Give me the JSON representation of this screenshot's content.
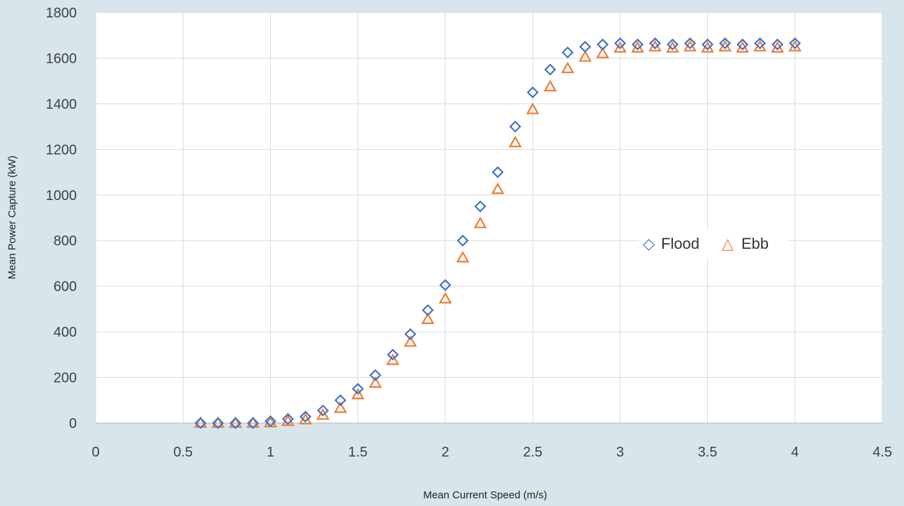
{
  "chart_data": {
    "type": "scatter",
    "title": "",
    "xlabel": "Mean Current Speed (m/s)",
    "ylabel": "Mean Power Capture (kW)",
    "xlim": [
      0,
      4.5
    ],
    "ylim": [
      0,
      1800
    ],
    "xticks": [
      0,
      0.5,
      1,
      1.5,
      2,
      2.5,
      3,
      3.5,
      4,
      4.5
    ],
    "xtick_labels": [
      "0",
      "0.5",
      "1",
      "1.5",
      "2",
      "2.5",
      "3",
      "3.5",
      "4",
      "4.5"
    ],
    "yticks": [
      0,
      200,
      400,
      600,
      800,
      1000,
      1200,
      1400,
      1600,
      1800
    ],
    "ytick_labels": [
      "0",
      "200",
      "400",
      "600",
      "800",
      "1000",
      "1200",
      "1400",
      "1600",
      "1800"
    ],
    "grid": true,
    "legend": {
      "position": "center-right",
      "marker_flood": "◇",
      "marker_ebb": "△"
    },
    "x": [
      0.6,
      0.7,
      0.8,
      0.9,
      1.0,
      1.1,
      1.2,
      1.3,
      1.4,
      1.5,
      1.6,
      1.7,
      1.8,
      1.9,
      2.0,
      2.1,
      2.2,
      2.3,
      2.4,
      2.5,
      2.6,
      2.7,
      2.8,
      2.9,
      3.0,
      3.1,
      3.2,
      3.3,
      3.4,
      3.5,
      3.6,
      3.7,
      3.8,
      3.9,
      4.0
    ],
    "series": [
      {
        "name": "Flood",
        "marker": "diamond",
        "color": "#4472c4",
        "values": [
          0,
          0,
          0,
          0,
          8,
          18,
          28,
          55,
          100,
          150,
          210,
          300,
          390,
          495,
          605,
          800,
          950,
          1100,
          1300,
          1450,
          1550,
          1625,
          1650,
          1660,
          1665,
          1660,
          1665,
          1660,
          1665,
          1660,
          1665,
          1660,
          1665,
          1660,
          1665
        ]
      },
      {
        "name": "Ebb",
        "marker": "triangle",
        "color": "#ed7d31",
        "values": [
          0,
          0,
          0,
          0,
          2,
          8,
          15,
          35,
          65,
          125,
          175,
          275,
          355,
          455,
          545,
          725,
          875,
          1025,
          1230,
          1375,
          1475,
          1555,
          1605,
          1620,
          1645,
          1645,
          1650,
          1645,
          1650,
          1645,
          1650,
          1645,
          1650,
          1645,
          1650
        ]
      }
    ]
  }
}
